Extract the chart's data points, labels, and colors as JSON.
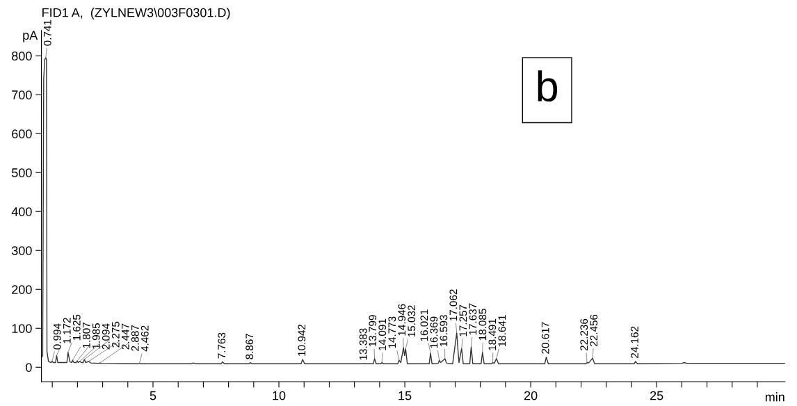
{
  "chart_data": {
    "type": "line",
    "title": "FID1 A,  (ZYLNEW3\\003F0301.D)",
    "xlabel": "min",
    "ylabel": "pA",
    "x": [
      0.57,
      0.62,
      0.66,
      0.7,
      0.741,
      0.77,
      0.79,
      0.85,
      0.95,
      0.994,
      1.04,
      1.13,
      1.172,
      1.22,
      1.58,
      1.625,
      1.7,
      1.78,
      1.807,
      1.86,
      1.95,
      1.985,
      2.03,
      2.094,
      2.15,
      2.23,
      2.275,
      2.33,
      2.447,
      2.52,
      2.85,
      2.887,
      2.95,
      4.42,
      4.462,
      4.51,
      6.5,
      6.6,
      6.7,
      7.71,
      7.763,
      7.83,
      8.82,
      8.867,
      8.92,
      10.88,
      10.942,
      11.02,
      13.34,
      13.383,
      13.43,
      13.75,
      13.799,
      13.86,
      14.05,
      14.091,
      14.14,
      14.72,
      14.773,
      14.84,
      14.946,
      14.99,
      15.032,
      15.1,
      15.97,
      16.021,
      16.08,
      16.33,
      16.369,
      16.42,
      16.593,
      16.66,
      16.9,
      17.062,
      17.15,
      17.257,
      17.32,
      17.58,
      17.637,
      17.7,
      18.03,
      18.085,
      18.15,
      18.45,
      18.491,
      18.55,
      18.641,
      18.72,
      20.56,
      20.617,
      20.7,
      22.19,
      22.236,
      22.3,
      22.456,
      22.54,
      24.11,
      24.162,
      24.23,
      26.0,
      26.1,
      26.2,
      30.1
    ],
    "series": [
      {
        "color": "#333333",
        "values": [
          25,
          30,
          740,
          790,
          795,
          790,
          40,
          15,
          12,
          15,
          12,
          12,
          30,
          12,
          12,
          38,
          14,
          12,
          18,
          12,
          12,
          16,
          12,
          15,
          12,
          12,
          20,
          12,
          15,
          11,
          10,
          11,
          10,
          9,
          10,
          9,
          9,
          11,
          9,
          9,
          14,
          9,
          9,
          12,
          9,
          9,
          20,
          9,
          9,
          10,
          9,
          9,
          22,
          9,
          9,
          12,
          9,
          9,
          18,
          12,
          50,
          30,
          47,
          9,
          9,
          36,
          9,
          10,
          18,
          12,
          22,
          10,
          9,
          88,
          12,
          48,
          9,
          9,
          52,
          9,
          9,
          38,
          9,
          9,
          12,
          10,
          22,
          9,
          9,
          26,
          9,
          9,
          12,
          11,
          23,
          9,
          9,
          15,
          9,
          10,
          12,
          10,
          10
        ]
      }
    ],
    "xlim": [
      0.57,
      30.1
    ],
    "xticks": [
      {
        "value": 1,
        "label": null
      },
      {
        "value": 2,
        "label": null
      },
      {
        "value": 3,
        "label": null
      },
      {
        "value": 4,
        "label": null
      },
      5,
      {
        "value": 6,
        "label": null
      },
      {
        "value": 7,
        "label": null
      },
      {
        "value": 8,
        "label": null
      },
      {
        "value": 9,
        "label": null
      },
      10,
      {
        "value": 11,
        "label": null
      },
      {
        "value": 12,
        "label": null
      },
      {
        "value": 13,
        "label": null
      },
      {
        "value": 14,
        "label": null
      },
      15,
      {
        "value": 16,
        "label": null
      },
      {
        "value": 17,
        "label": null
      },
      {
        "value": 18,
        "label": null
      },
      {
        "value": 19,
        "label": null
      },
      20,
      {
        "value": 21,
        "label": null
      },
      {
        "value": 22,
        "label": null
      },
      {
        "value": 23,
        "label": null
      },
      {
        "value": 24,
        "label": null
      },
      25,
      {
        "value": 26,
        "label": null
      },
      {
        "value": 27,
        "label": null
      },
      {
        "value": 28,
        "label": null
      },
      {
        "value": 29,
        "label": null
      }
    ],
    "ylim": [
      -37,
      865
    ],
    "yticks": [
      0,
      100,
      200,
      300,
      400,
      500,
      600,
      700,
      800
    ],
    "grid": false,
    "marker": "none",
    "line_style": "solid",
    "annotations": [
      {
        "text": "0.741",
        "x": 0.741,
        "y": 795
      },
      {
        "text": "0.994",
        "x": 0.994,
        "y": 15
      },
      {
        "text": "1.172",
        "x": 1.172,
        "y": 30
      },
      {
        "text": "1.625",
        "x": 1.625,
        "y": 38
      },
      {
        "text": "1.807",
        "x": 1.807,
        "y": 18
      },
      {
        "text": "1.985",
        "x": 1.985,
        "y": 16
      },
      {
        "text": "2.094",
        "x": 2.094,
        "y": 15
      },
      {
        "text": "2.275",
        "x": 2.275,
        "y": 20
      },
      {
        "text": "2.447",
        "x": 2.447,
        "y": 15
      },
      {
        "text": "2.887",
        "x": 2.887,
        "y": 11
      },
      {
        "text": "4.462",
        "x": 4.462,
        "y": 10
      },
      {
        "text": "7.763",
        "x": 7.763,
        "y": 14
      },
      {
        "text": "8.867",
        "x": 8.867,
        "y": 12
      },
      {
        "text": "10.942",
        "x": 10.942,
        "y": 20
      },
      {
        "text": "13.383",
        "x": 13.383,
        "y": 10
      },
      {
        "text": "13.799",
        "x": 13.799,
        "y": 22
      },
      {
        "text": "14.091",
        "x": 14.091,
        "y": 12
      },
      {
        "text": "14.773",
        "x": 14.773,
        "y": 18
      },
      {
        "text": "14.946",
        "x": 14.946,
        "y": 50
      },
      {
        "text": "15.032",
        "x": 15.032,
        "y": 47
      },
      {
        "text": "16.021",
        "x": 16.021,
        "y": 36
      },
      {
        "text": "16.369",
        "x": 16.369,
        "y": 18
      },
      {
        "text": "16.593",
        "x": 16.593,
        "y": 22
      },
      {
        "text": "17.062",
        "x": 17.062,
        "y": 88
      },
      {
        "text": "17.257",
        "x": 17.257,
        "y": 48
      },
      {
        "text": "17.637",
        "x": 17.637,
        "y": 52
      },
      {
        "text": "18.085",
        "x": 18.085,
        "y": 38
      },
      {
        "text": "18.491",
        "x": 18.491,
        "y": 12
      },
      {
        "text": "18.641",
        "x": 18.641,
        "y": 22
      },
      {
        "text": "20.617",
        "x": 20.617,
        "y": 26
      },
      {
        "text": "22.236",
        "x": 22.236,
        "y": 12
      },
      {
        "text": "22.456",
        "x": 22.456,
        "y": 23
      },
      {
        "text": "24.162",
        "x": 24.162,
        "y": 15
      },
      "b"
    ]
  }
}
